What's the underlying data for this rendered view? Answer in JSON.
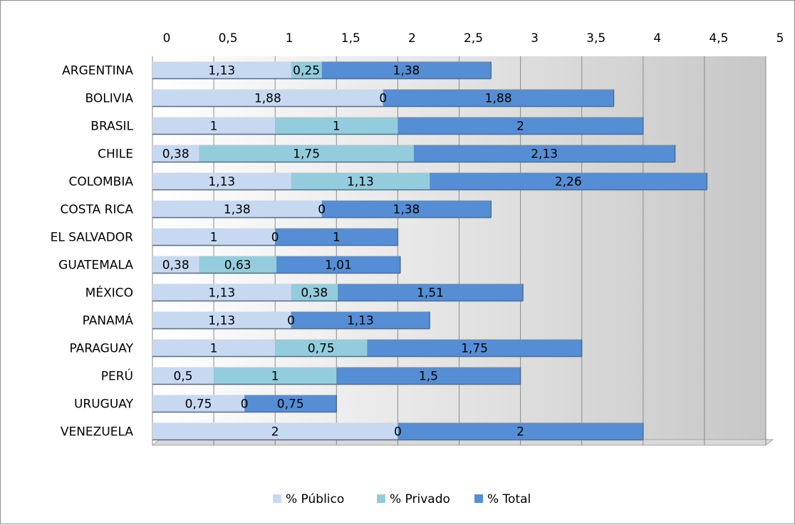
{
  "chart_data": {
    "type": "bar",
    "orientation": "horizontal",
    "stacked": true,
    "title": "",
    "xlabel": "",
    "ylabel": "",
    "xlim": [
      0,
      5
    ],
    "x_ticks": [
      "0",
      "0,5",
      "1",
      "1,5",
      "2",
      "2,5",
      "3",
      "3,5",
      "4",
      "4,5",
      "5"
    ],
    "x_axis_position": "top",
    "grid": true,
    "legend_position": "bottom",
    "categories": [
      "ARGENTINA",
      "BOLIVIA",
      "BRASIL",
      "CHILE",
      "COLOMBIA",
      "COSTA RICA",
      "EL SALVADOR",
      "GUATEMALA",
      "MÉXICO",
      "PANAMÁ",
      "PARAGUAY",
      "PERÚ",
      "URUGUAY",
      "VENEZUELA"
    ],
    "series": [
      {
        "name": "% Público",
        "color": "#c6d9f1",
        "values": [
          1.13,
          1.88,
          1,
          0.38,
          1.13,
          1.38,
          1,
          0.38,
          1.13,
          1.13,
          1,
          0.5,
          0.75,
          2
        ],
        "labels": [
          "1,13",
          "1,88",
          "1",
          "0,38",
          "1,13",
          "1,38",
          "1",
          "0,38",
          "1,13",
          "1,13",
          "1",
          "0,5",
          "0,75",
          "2"
        ]
      },
      {
        "name": "% Privado",
        "color": "#93cddd",
        "values": [
          0.25,
          0,
          1,
          1.75,
          1.13,
          0,
          0,
          0.63,
          0.38,
          0,
          0.75,
          1,
          0,
          0
        ],
        "labels": [
          "0,25",
          "0",
          "1",
          "1,75",
          "1,13",
          "0",
          "0",
          "0,63",
          "0,38",
          "0",
          "0,75",
          "1",
          "0",
          "0"
        ]
      },
      {
        "name": "% Total",
        "color": "#558ed5",
        "values": [
          1.38,
          1.88,
          2,
          2.13,
          2.26,
          1.38,
          1,
          1.01,
          1.51,
          1.13,
          1.75,
          1.5,
          0.75,
          2
        ],
        "labels": [
          "1,38",
          "1,88",
          "2",
          "2,13",
          "2,26",
          "1,38",
          "1",
          "1,01",
          "1,51",
          "1,13",
          "1,75",
          "1,5",
          "0,75",
          "2"
        ]
      }
    ]
  }
}
